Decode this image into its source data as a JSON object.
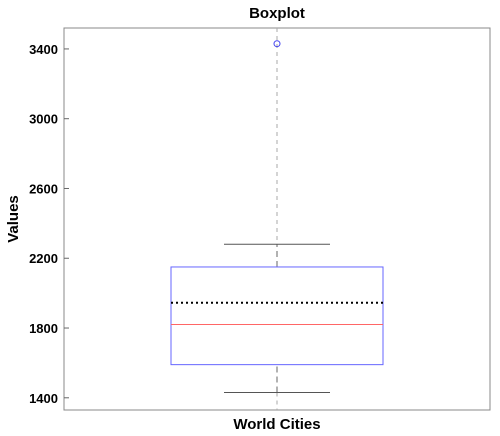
{
  "chart_data": {
    "type": "boxplot",
    "title": "Boxplot",
    "xlabel": "World Cities",
    "ylabel": "Values",
    "ylim": [
      1330,
      3520
    ],
    "yticks": [
      1400,
      1800,
      2200,
      2600,
      3000,
      3400
    ],
    "grid": false,
    "box": {
      "whisker_low": 1430,
      "q1": 1590,
      "median": 1820,
      "mean": 1945,
      "q3": 2150,
      "whisker_high": 2280,
      "outliers": [
        3430
      ]
    },
    "colors": {
      "box": "#6666ff",
      "median": "#ff6666",
      "mean": "#000000",
      "whisker": "#999999",
      "cap": "#555555",
      "outlier": "#4444ee",
      "frame": "#888888"
    }
  }
}
